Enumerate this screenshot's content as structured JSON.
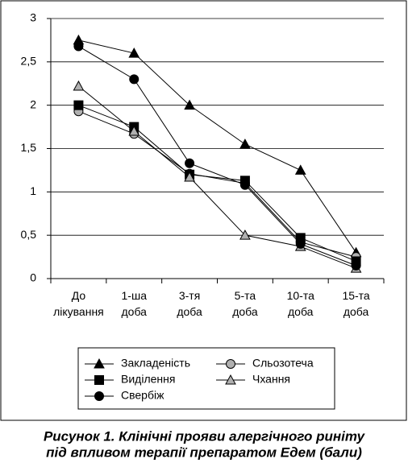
{
  "chart_data": {
    "type": "line",
    "caption": [
      "Рисунок 1. Клінічні прояви алергічного риніту",
      "під впливом терапії препаратом Едем (бали)"
    ],
    "categories": [
      "До лікування",
      "1-ша доба",
      "3-тя доба",
      "5-та доба",
      "10-та доба",
      "15-та доба"
    ],
    "ylim": [
      0,
      3
    ],
    "yticks": [
      0,
      {
        "value": 0.5,
        "label": "0,5"
      },
      1,
      {
        "value": 1.5,
        "label": "1,5"
      },
      2,
      {
        "value": 2.5,
        "label": "2,5"
      },
      3
    ],
    "grid": true,
    "series": [
      {
        "name": "Закладеність",
        "color": "#000000",
        "marker": "triangle",
        "values": [
          2.75,
          2.6,
          2.0,
          1.55,
          1.25,
          0.3
        ]
      },
      {
        "name": "Сльозотеча",
        "color": "#b0b0b0",
        "marker": "circle",
        "values": [
          1.93,
          1.67,
          1.21,
          1.1,
          0.42,
          0.25
        ]
      },
      {
        "name": "Виділення",
        "color": "#000000",
        "marker": "square",
        "values": [
          2.0,
          1.75,
          1.2,
          1.13,
          0.47,
          0.2
        ]
      },
      {
        "name": "Чхання",
        "color": "#b0b0b0",
        "marker": "triangle",
        "values": [
          2.22,
          1.7,
          1.17,
          0.5,
          0.37,
          0.12
        ]
      },
      {
        "name": "Свербіж",
        "color": "#000000",
        "marker": "circle",
        "values": [
          2.68,
          2.3,
          1.33,
          1.08,
          0.4,
          0.15
        ]
      }
    ]
  }
}
